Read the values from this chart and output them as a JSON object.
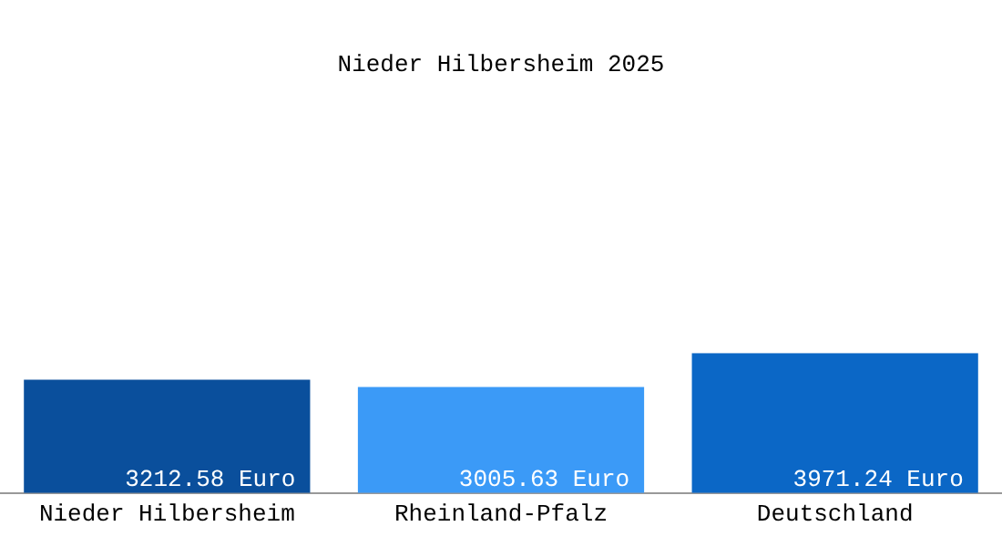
{
  "chart_data": {
    "type": "bar",
    "title": "Nieder Hilbersheim 2025",
    "categories": [
      "Nieder Hilbersheim",
      "Rheinland-Pfalz",
      "Deutschland"
    ],
    "values": [
      3212.58,
      3005.63,
      3971.24
    ],
    "colors": [
      "#0a4f9c",
      "#3b9af7",
      "#0b67c6"
    ],
    "value_labels": [
      "3212.58 Euro",
      "3005.63 Euro",
      "3971.24 Euro"
    ],
    "grid": false,
    "legend": false
  }
}
